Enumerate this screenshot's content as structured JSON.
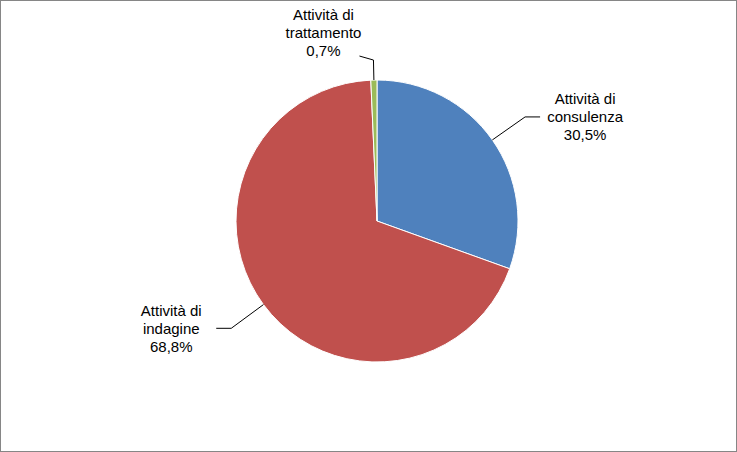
{
  "chart_data": {
    "type": "pie",
    "categories": [
      "Attività di consulenza",
      "Attività di indagine",
      "Attività di trattamento"
    ],
    "values": [
      30.5,
      68.8,
      0.7
    ],
    "value_labels": [
      "30,5%",
      "68,8%",
      "0,7%"
    ],
    "colors": [
      "#4f81bd",
      "#c0504d",
      "#9bbb59"
    ],
    "data_labels": true
  }
}
